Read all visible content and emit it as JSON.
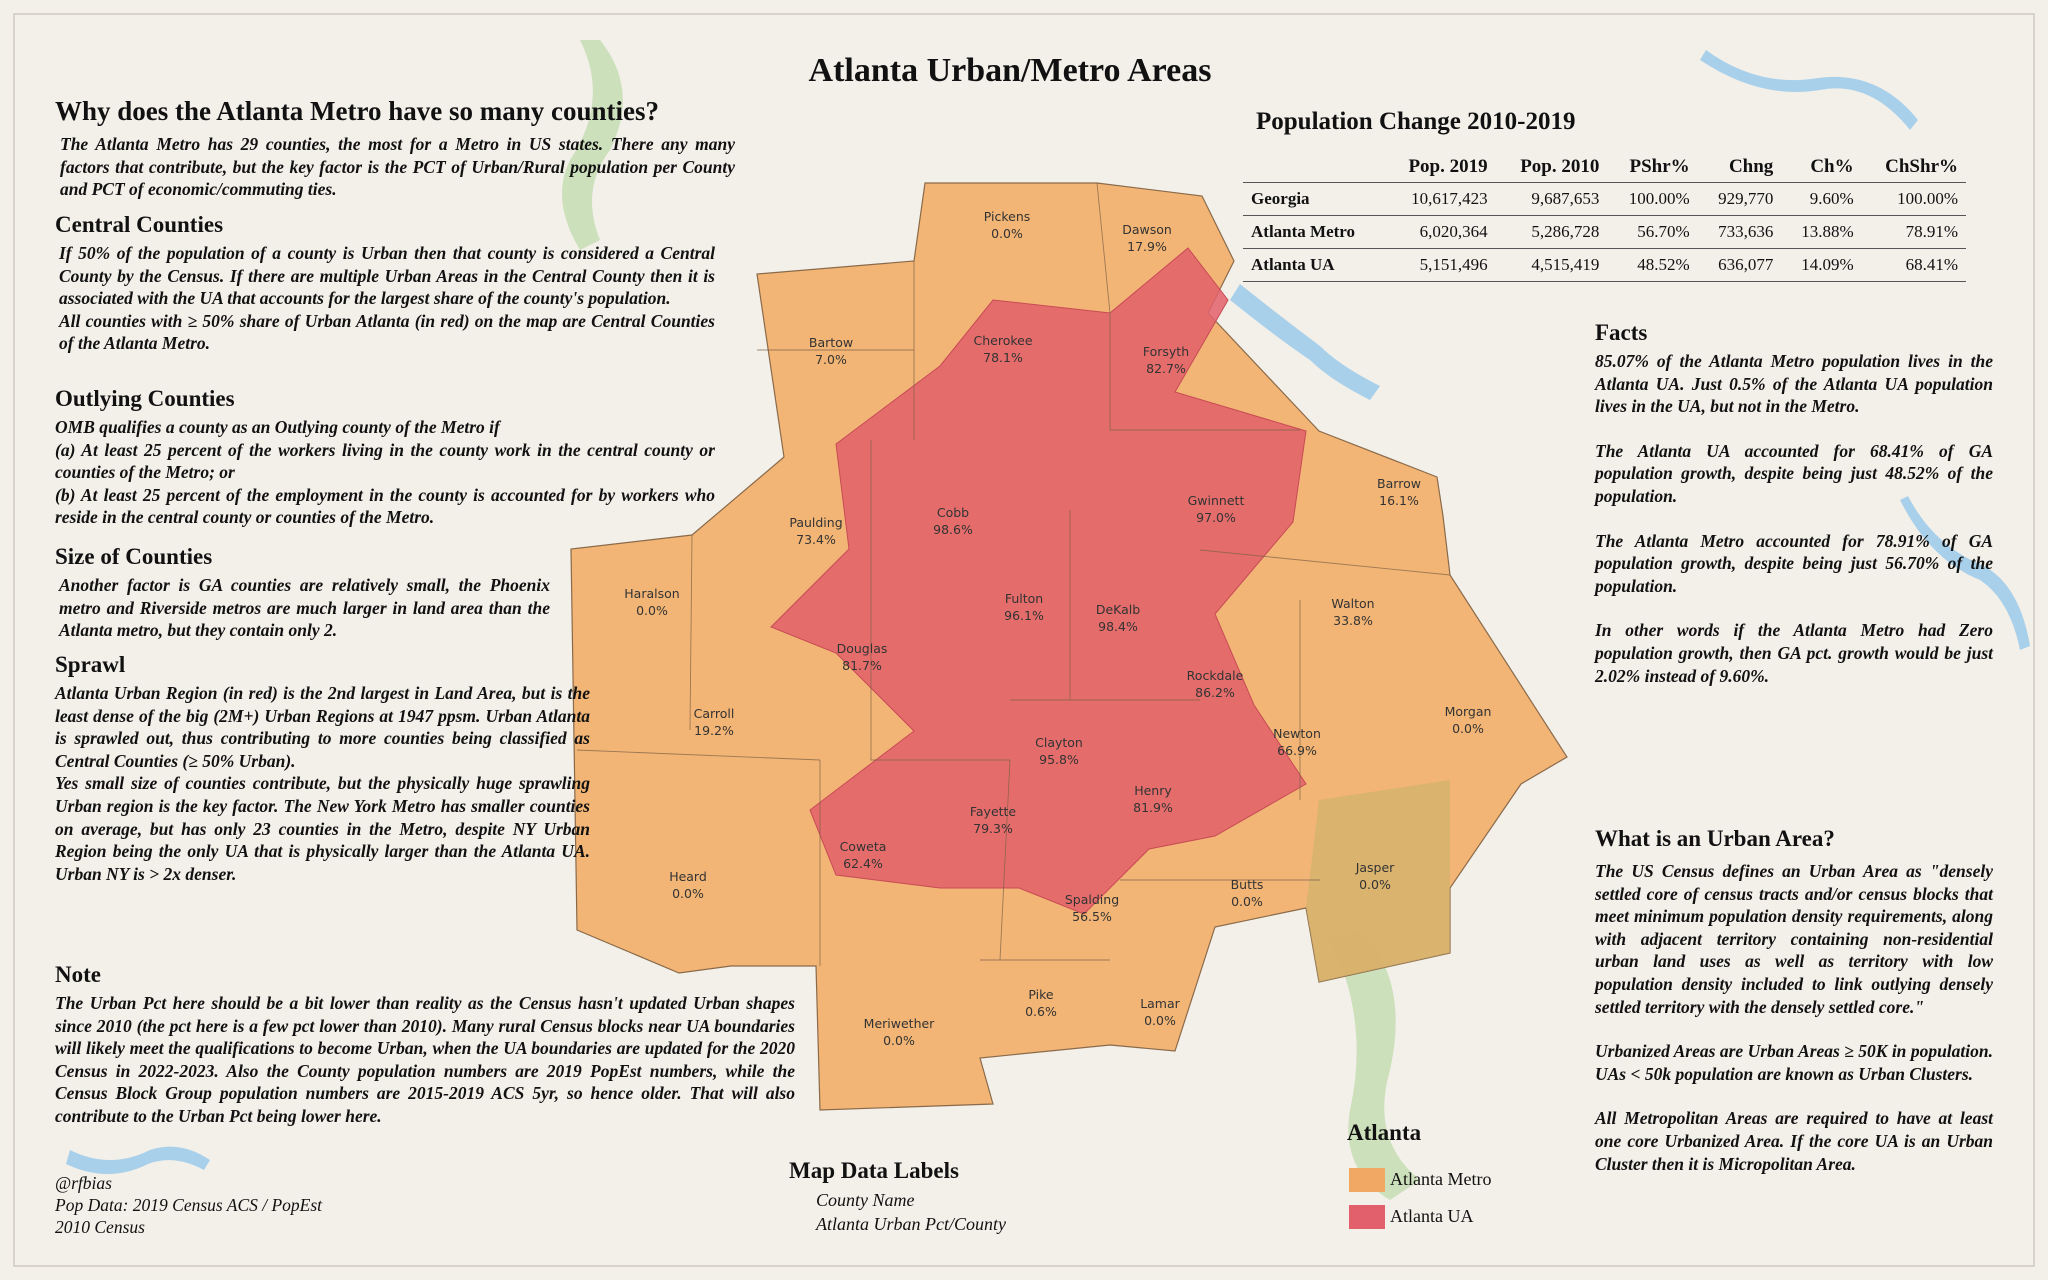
{
  "title": "Atlanta Urban/Metro Areas",
  "left": {
    "heading": "Why does the Atlanta Metro have so many counties?",
    "intro": "The Atlanta Metro has 29 counties, the most for a Metro in US states. There any many factors that contribute, but the key factor is the PCT of Urban/Rural population per County and PCT of economic/commuting ties.",
    "sections": [
      {
        "heading": "Central Counties",
        "paragraphs": [
          "If 50% of the population of a county is Urban then that county is considered a Central County by the Census. If there are multiple Urban Areas in the Central County then it is associated with the UA that accounts for the largest share of the county's population.",
          "All counties with ≥ 50% share of Urban Atlanta (in red) on the map are Central Counties of the Atlanta Metro."
        ]
      },
      {
        "heading": "Outlying Counties",
        "paragraphs": [
          "OMB qualifies a county as an Outlying county of the Metro if",
          "(a) At least 25 percent of the workers living in the county work in the central county or counties of the Metro; or",
          "(b) At least 25 percent of the employment in the county is accounted for by workers who reside in the central county or counties of the Metro."
        ]
      },
      {
        "heading": "Size of Counties",
        "paragraphs": [
          "Another factor is GA counties are relatively small, the Phoenix metro and Riverside metros are much larger in land area than the Atlanta metro, but they contain only 2."
        ]
      },
      {
        "heading": "Sprawl",
        "paragraphs": [
          "Atlanta Urban Region (in red) is the 2nd largest in Land Area, but is the least dense of the big (2M+) Urban Regions at 1947 ppsm.  Urban Atlanta is sprawled out, thus contributing to more counties being classified as Central Counties (≥ 50% Urban).",
          "Yes small size of counties contribute, but the physically huge sprawling Urban region is the key factor.  The New York Metro has smaller counties on average, but has only 23 counties in the Metro, despite NY Urban Region being the only UA that is physically larger than the Atlanta UA.  Urban NY is > 2x denser."
        ]
      },
      {
        "heading": "Note",
        "paragraphs": [
          "The Urban Pct here should be a bit lower than reality as the Census hasn't updated Urban shapes since 2010 (the pct here is a few pct lower than 2010). Many rural Census blocks near UA boundaries will likely meet the qualifications to become Urban, when the UA boundaries are updated for the 2020 Census in 2022-2023. Also the County population numbers are 2019 PopEst numbers, while the Census Block Group population numbers are 2015-2019 ACS 5yr, so hence older. That will also contribute to the Urban Pct being lower here."
        ]
      }
    ],
    "credits": [
      "@rfbias",
      "Pop Data: 2019 Census ACS / PopEst",
      "2010 Census"
    ]
  },
  "table": {
    "title": "Population Change 2010-2019",
    "columns": [
      "Pop. 2019",
      "Pop. 2010",
      "PShr%",
      "Chng",
      "Ch%",
      "ChShr%"
    ],
    "rows": [
      {
        "label": "Georgia",
        "cells": [
          "10,617,423",
          "9,687,653",
          "100.00%",
          "929,770",
          "9.60%",
          "100.00%"
        ]
      },
      {
        "label": "Atlanta Metro",
        "cells": [
          "6,020,364",
          "5,286,728",
          "56.70%",
          "733,636",
          "13.88%",
          "78.91%"
        ]
      },
      {
        "label": "Atlanta UA",
        "cells": [
          "5,151,496",
          "4,515,419",
          "48.52%",
          "636,077",
          "14.09%",
          "68.41%"
        ]
      }
    ]
  },
  "facts": {
    "heading": "Facts",
    "paragraphs": [
      "85.07% of the Atlanta Metro population lives in the Atlanta UA. Just 0.5% of the  Atlanta UA population lives in the UA, but not in the Metro.",
      "The Atlanta UA accounted for 68.41% of GA population growth, despite being just 48.52% of the population.",
      "The Atlanta Metro accounted for 78.91% of GA population growth, despite being just 56.70% of the population.",
      "In other words if the Atlanta Metro had Zero population growth, then GA pct. growth would be just  2.02% instead of  9.60%."
    ]
  },
  "urban_area": {
    "heading": "What is an Urban Area?",
    "paragraphs": [
      "The US Census defines an Urban Area as \"densely settled core of census tracts and/or census blocks that meet minimum population density requirements, along with adjacent territory containing non-residential urban land uses as well as territory with low population density included to link outlying densely settled territory with the densely settled core.\"",
      "Urbanized Areas are Urban Areas ≥ 50K in population. UAs < 50k population are known as Urban Clusters.",
      "All Metropolitan Areas are required to have at least one core Urbanized Area. If the core UA is an Urban Cluster then it is Micropolitan Area."
    ]
  },
  "map_labels": {
    "heading": "Map Data Labels",
    "lines": [
      "County Name",
      "Atlanta Urban Pct/County"
    ]
  },
  "legend": {
    "title": "Atlanta",
    "items": [
      {
        "label": "Atlanta Metro",
        "color": "#f2a865"
      },
      {
        "label": "Atlanta UA",
        "color": "#e2606b"
      }
    ]
  },
  "counties": [
    {
      "name": "Pickens",
      "urban_pct": "0.0%"
    },
    {
      "name": "Dawson",
      "urban_pct": "17.9%"
    },
    {
      "name": "Bartow",
      "urban_pct": "7.0%"
    },
    {
      "name": "Cherokee",
      "urban_pct": "78.1%"
    },
    {
      "name": "Forsyth",
      "urban_pct": "82.7%"
    },
    {
      "name": "Paulding",
      "urban_pct": "73.4%"
    },
    {
      "name": "Cobb",
      "urban_pct": "98.6%"
    },
    {
      "name": "Gwinnett",
      "urban_pct": "97.0%"
    },
    {
      "name": "Barrow",
      "urban_pct": "16.1%"
    },
    {
      "name": "Haralson",
      "urban_pct": "0.0%"
    },
    {
      "name": "Fulton",
      "urban_pct": "96.1%"
    },
    {
      "name": "DeKalb",
      "urban_pct": "98.4%"
    },
    {
      "name": "Walton",
      "urban_pct": "33.8%"
    },
    {
      "name": "Douglas",
      "urban_pct": "81.7%"
    },
    {
      "name": "Rockdale",
      "urban_pct": "86.2%"
    },
    {
      "name": "Carroll",
      "urban_pct": "19.2%"
    },
    {
      "name": "Morgan",
      "urban_pct": "0.0%"
    },
    {
      "name": "Newton",
      "urban_pct": "66.9%"
    },
    {
      "name": "Clayton",
      "urban_pct": "95.8%"
    },
    {
      "name": "Henry",
      "urban_pct": "81.9%"
    },
    {
      "name": "Fayette",
      "urban_pct": "79.3%"
    },
    {
      "name": "Coweta",
      "urban_pct": "62.4%"
    },
    {
      "name": "Jasper",
      "urban_pct": "0.0%"
    },
    {
      "name": "Heard",
      "urban_pct": "0.0%"
    },
    {
      "name": "Butts",
      "urban_pct": "0.0%"
    },
    {
      "name": "Spalding",
      "urban_pct": "56.5%"
    },
    {
      "name": "Pike",
      "urban_pct": "0.6%"
    },
    {
      "name": "Lamar",
      "urban_pct": "0.0%"
    },
    {
      "name": "Meriwether",
      "urban_pct": "0.0%"
    }
  ]
}
